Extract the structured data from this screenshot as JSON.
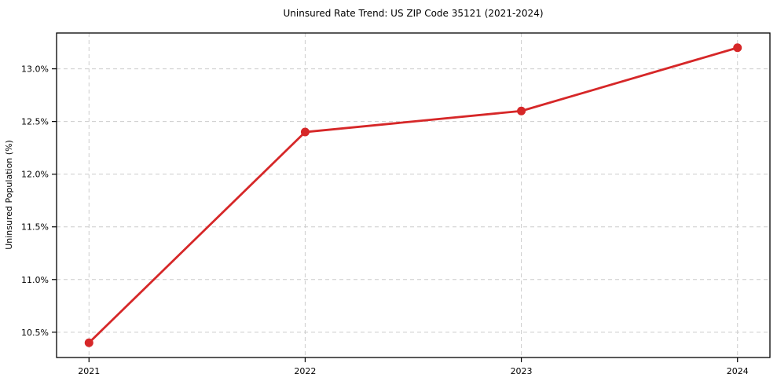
{
  "chart_data": {
    "type": "line",
    "title": "Uninsured Rate Trend: US ZIP Code 35121 (2021-2024)",
    "xlabel": "",
    "ylabel": "Uninsured Population (%)",
    "x": [
      2021,
      2022,
      2023,
      2024
    ],
    "series": [
      {
        "name": "uninsured-rate",
        "values": [
          10.4,
          12.4,
          12.6,
          13.2
        ]
      }
    ],
    "xlim": [
      2020.85,
      2024.15
    ],
    "ylim": [
      10.26,
      13.34
    ],
    "xticks": [
      2021,
      2022,
      2023,
      2024
    ],
    "xtick_labels": [
      "2021",
      "2022",
      "2023",
      "2024"
    ],
    "yticks": [
      10.5,
      11.0,
      11.5,
      12.0,
      12.5,
      13.0
    ],
    "ytick_labels": [
      "10.5%",
      "11.0%",
      "11.5%",
      "12.0%",
      "12.5%",
      "13.0%"
    ],
    "grid": true,
    "grid_style": "dashed",
    "legend_position": "none",
    "colors": {
      "line": "#d62728",
      "marker": "#d62728",
      "gridline": "#cccccc",
      "axis_border": "#000000",
      "background": "#ffffff",
      "text": "#000000"
    }
  }
}
